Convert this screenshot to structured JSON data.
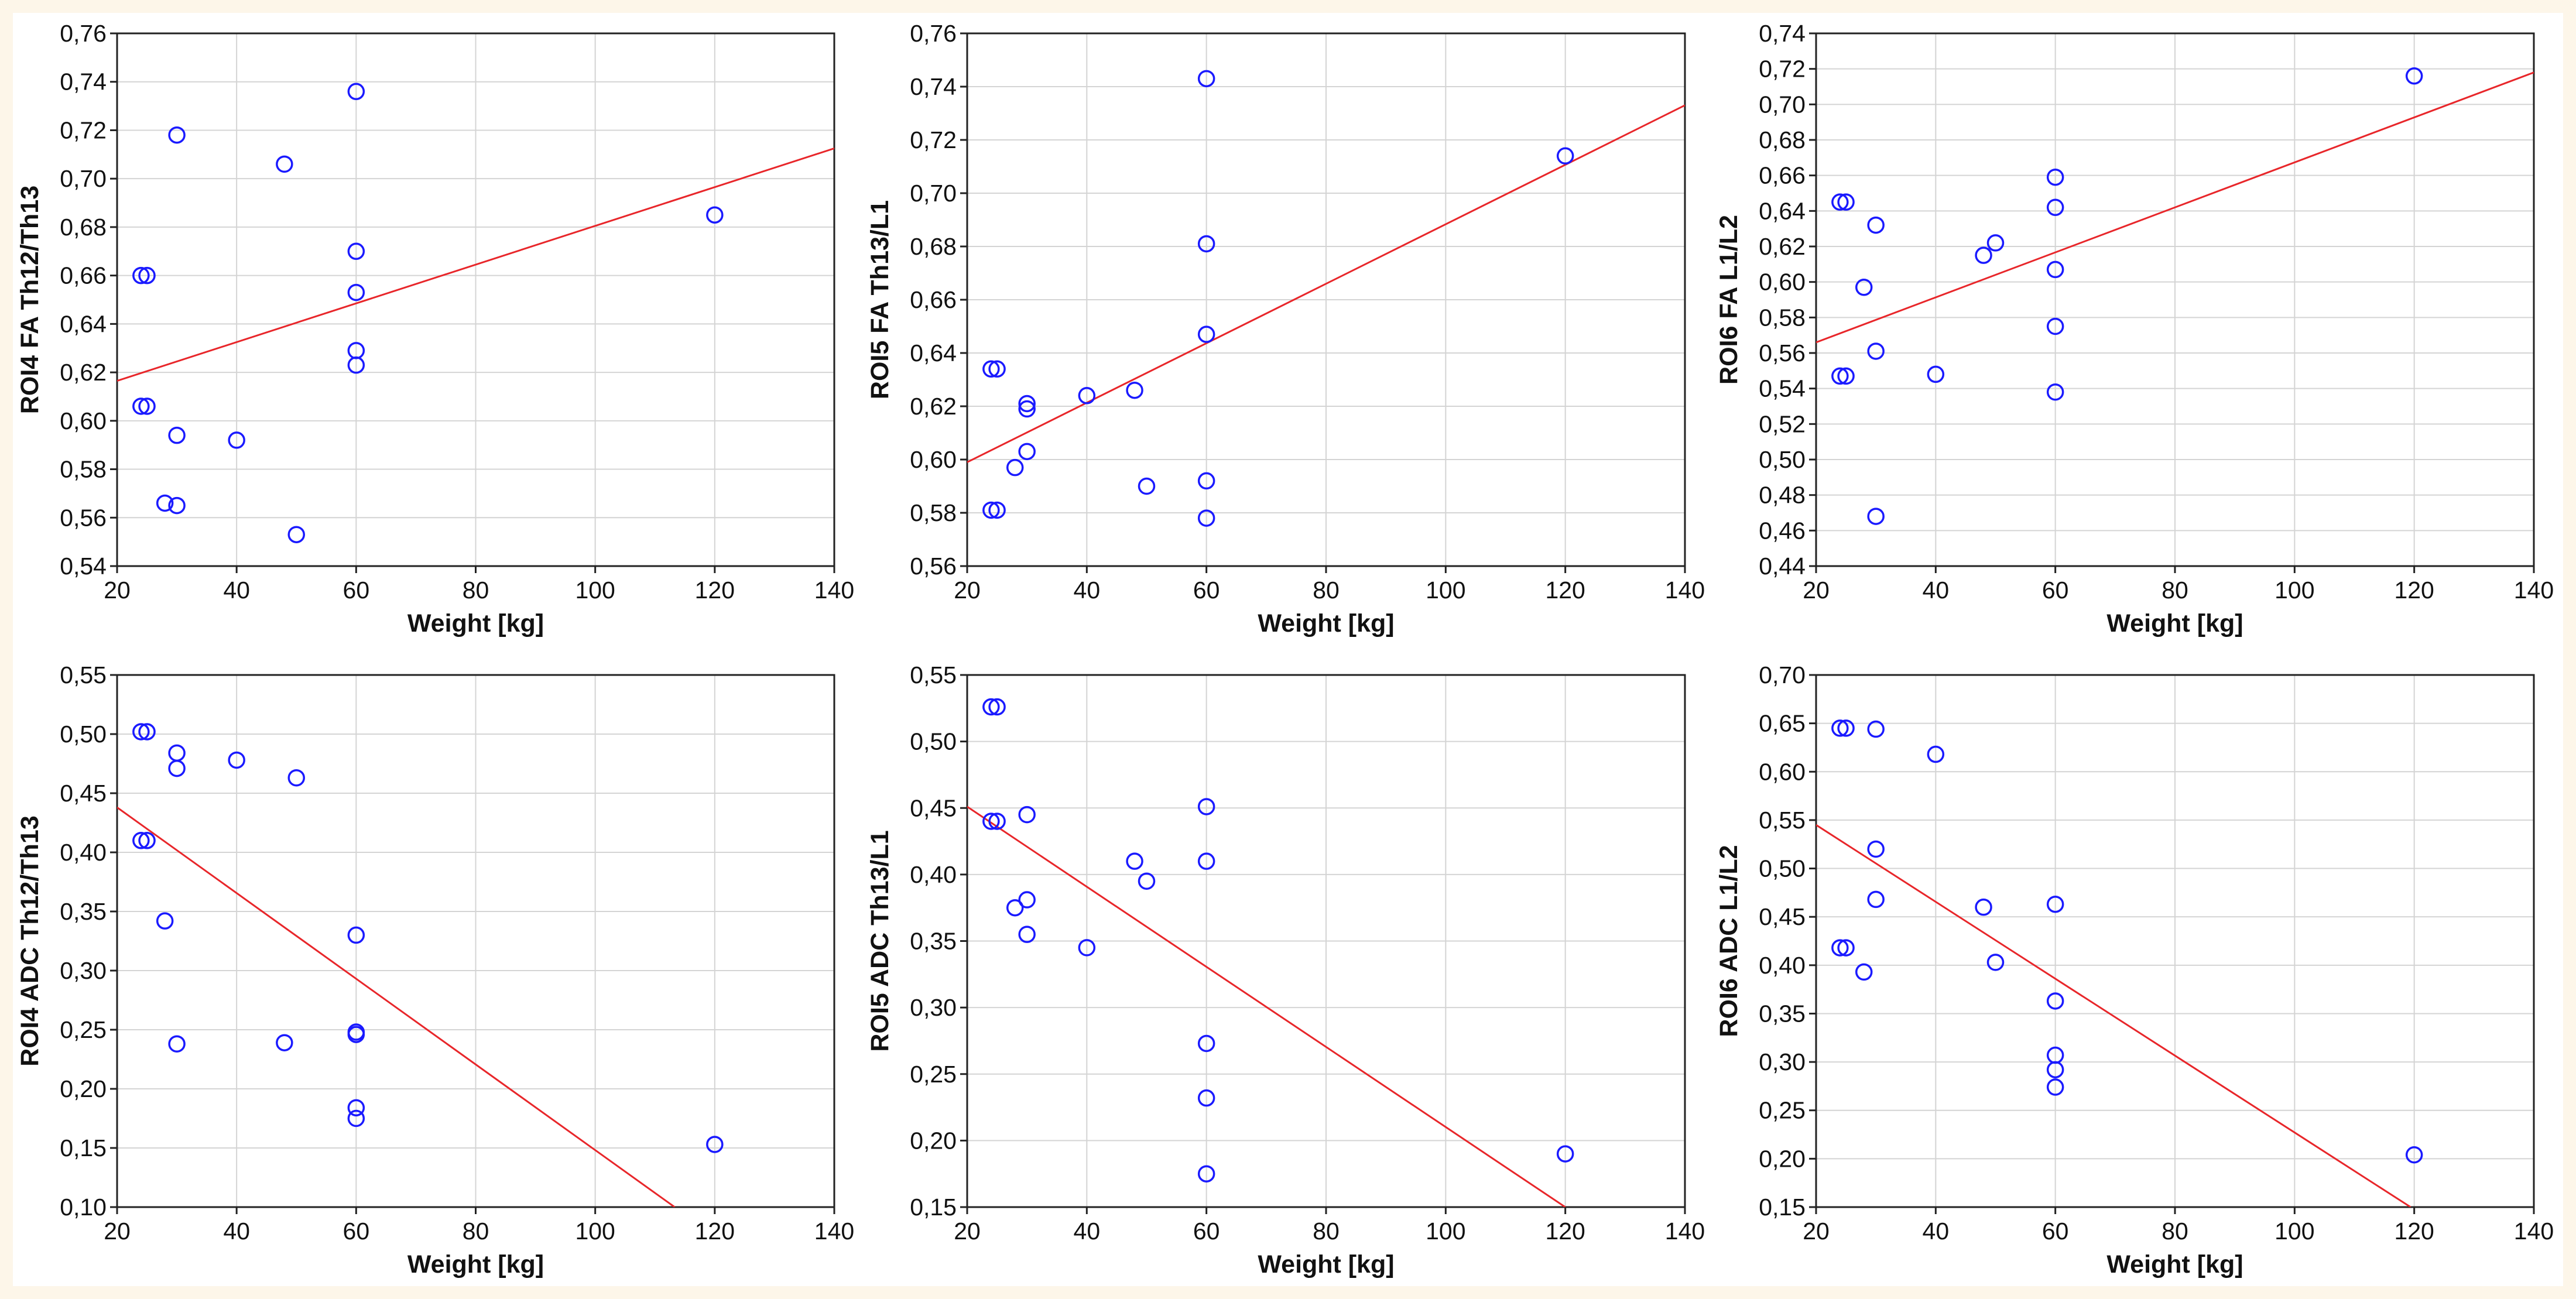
{
  "chart_data": [
    {
      "type": "scatter",
      "xlabel": "Weight [kg]",
      "ylabel": "ROI4 FA Th12/Th13",
      "xlim": [
        20,
        140
      ],
      "ylim": [
        0.54,
        0.76
      ],
      "xticks": [
        "20",
        "40",
        "60",
        "80",
        "100",
        "120",
        "140"
      ],
      "yticks": [
        "0,54",
        "0,56",
        "0,58",
        "0,60",
        "0,62",
        "0,64",
        "0,66",
        "0,68",
        "0,70",
        "0,72",
        "0,74",
        "0,76"
      ],
      "grid": true,
      "points": [
        {
          "x": 24,
          "y": 0.66
        },
        {
          "x": 25,
          "y": 0.66
        },
        {
          "x": 24,
          "y": 0.606
        },
        {
          "x": 25,
          "y": 0.606
        },
        {
          "x": 30,
          "y": 0.718
        },
        {
          "x": 30,
          "y": 0.594
        },
        {
          "x": 28,
          "y": 0.566
        },
        {
          "x": 30,
          "y": 0.565
        },
        {
          "x": 40,
          "y": 0.592
        },
        {
          "x": 48,
          "y": 0.706
        },
        {
          "x": 50,
          "y": 0.553
        },
        {
          "x": 60,
          "y": 0.736
        },
        {
          "x": 60,
          "y": 0.67
        },
        {
          "x": 60,
          "y": 0.653
        },
        {
          "x": 60,
          "y": 0.629
        },
        {
          "x": 60,
          "y": 0.623
        },
        {
          "x": 120,
          "y": 0.685
        }
      ],
      "fit": {
        "x1": 20,
        "y1": 0.6165,
        "x2": 140,
        "y2": 0.7125
      }
    },
    {
      "type": "scatter",
      "xlabel": "Weight [kg]",
      "ylabel": "ROI5 FA Th13/L1",
      "xlim": [
        20,
        140
      ],
      "ylim": [
        0.56,
        0.76
      ],
      "xticks": [
        "20",
        "40",
        "60",
        "80",
        "100",
        "120",
        "140"
      ],
      "yticks": [
        "0,56",
        "0,58",
        "0,60",
        "0,62",
        "0,64",
        "0,66",
        "0,68",
        "0,70",
        "0,72",
        "0,74",
        "0,76"
      ],
      "grid": true,
      "points": [
        {
          "x": 24,
          "y": 0.634
        },
        {
          "x": 25,
          "y": 0.634
        },
        {
          "x": 24,
          "y": 0.581
        },
        {
          "x": 25,
          "y": 0.581
        },
        {
          "x": 28,
          "y": 0.597
        },
        {
          "x": 30,
          "y": 0.621
        },
        {
          "x": 30,
          "y": 0.619
        },
        {
          "x": 30,
          "y": 0.603
        },
        {
          "x": 40,
          "y": 0.624
        },
        {
          "x": 48,
          "y": 0.626
        },
        {
          "x": 50,
          "y": 0.59
        },
        {
          "x": 60,
          "y": 0.743
        },
        {
          "x": 60,
          "y": 0.681
        },
        {
          "x": 60,
          "y": 0.647
        },
        {
          "x": 60,
          "y": 0.592
        },
        {
          "x": 60,
          "y": 0.578
        },
        {
          "x": 120,
          "y": 0.714
        }
      ],
      "fit": {
        "x1": 20,
        "y1": 0.599,
        "x2": 140,
        "y2": 0.733
      }
    },
    {
      "type": "scatter",
      "xlabel": "Weight [kg]",
      "ylabel": "ROI6 FA L1/L2",
      "xlim": [
        20,
        140
      ],
      "ylim": [
        0.44,
        0.74
      ],
      "xticks": [
        "20",
        "40",
        "60",
        "80",
        "100",
        "120",
        "140"
      ],
      "yticks": [
        "0,44",
        "0,46",
        "0,48",
        "0,50",
        "0,52",
        "0,54",
        "0,56",
        "0,58",
        "0,60",
        "0,62",
        "0,64",
        "0,66",
        "0,68",
        "0,70",
        "0,72",
        "0,74"
      ],
      "grid": true,
      "points": [
        {
          "x": 24,
          "y": 0.645
        },
        {
          "x": 25,
          "y": 0.645
        },
        {
          "x": 24,
          "y": 0.547
        },
        {
          "x": 25,
          "y": 0.547
        },
        {
          "x": 28,
          "y": 0.597
        },
        {
          "x": 30,
          "y": 0.632
        },
        {
          "x": 30,
          "y": 0.561
        },
        {
          "x": 30,
          "y": 0.468
        },
        {
          "x": 40,
          "y": 0.548
        },
        {
          "x": 48,
          "y": 0.615
        },
        {
          "x": 50,
          "y": 0.622
        },
        {
          "x": 60,
          "y": 0.659
        },
        {
          "x": 60,
          "y": 0.642
        },
        {
          "x": 60,
          "y": 0.607
        },
        {
          "x": 60,
          "y": 0.575
        },
        {
          "x": 60,
          "y": 0.538
        },
        {
          "x": 120,
          "y": 0.716
        }
      ],
      "fit": {
        "x1": 20,
        "y1": 0.566,
        "x2": 140,
        "y2": 0.718
      }
    },
    {
      "type": "scatter",
      "xlabel": "Weight [kg]",
      "ylabel": "ROI4 ADC Th12/Th13",
      "xlim": [
        20,
        140
      ],
      "ylim": [
        0.1,
        0.55
      ],
      "xticks": [
        "20",
        "40",
        "60",
        "80",
        "100",
        "120",
        "140"
      ],
      "yticks": [
        "0,10",
        "0,15",
        "0,20",
        "0,25",
        "0,30",
        "0,35",
        "0,40",
        "0,45",
        "0,50",
        "0,55"
      ],
      "grid": true,
      "points": [
        {
          "x": 24,
          "y": 0.502
        },
        {
          "x": 25,
          "y": 0.502
        },
        {
          "x": 24,
          "y": 0.41
        },
        {
          "x": 25,
          "y": 0.41
        },
        {
          "x": 28,
          "y": 0.342
        },
        {
          "x": 30,
          "y": 0.484
        },
        {
          "x": 30,
          "y": 0.471
        },
        {
          "x": 30,
          "y": 0.238
        },
        {
          "x": 40,
          "y": 0.478
        },
        {
          "x": 48,
          "y": 0.239
        },
        {
          "x": 50,
          "y": 0.463
        },
        {
          "x": 60,
          "y": 0.33
        },
        {
          "x": 60,
          "y": 0.248
        },
        {
          "x": 60,
          "y": 0.246
        },
        {
          "x": 60,
          "y": 0.184
        },
        {
          "x": 60,
          "y": 0.175
        },
        {
          "x": 120,
          "y": 0.153
        }
      ],
      "fit": {
        "x1": 20,
        "y1": 0.438,
        "x2": 113.3,
        "y2": 0.1
      }
    },
    {
      "type": "scatter",
      "xlabel": "Weight [kg]",
      "ylabel": "ROI5 ADC Th13/L1",
      "xlim": [
        20,
        140
      ],
      "ylim": [
        0.15,
        0.55
      ],
      "xticks": [
        "20",
        "40",
        "60",
        "80",
        "100",
        "120",
        "140"
      ],
      "yticks": [
        "0,15",
        "0,20",
        "0,25",
        "0,30",
        "0,35",
        "0,40",
        "0,45",
        "0,50",
        "0,55"
      ],
      "grid": true,
      "points": [
        {
          "x": 24,
          "y": 0.526
        },
        {
          "x": 25,
          "y": 0.526
        },
        {
          "x": 24,
          "y": 0.44
        },
        {
          "x": 25,
          "y": 0.44
        },
        {
          "x": 28,
          "y": 0.375
        },
        {
          "x": 30,
          "y": 0.445
        },
        {
          "x": 30,
          "y": 0.381
        },
        {
          "x": 30,
          "y": 0.355
        },
        {
          "x": 40,
          "y": 0.345
        },
        {
          "x": 48,
          "y": 0.41
        },
        {
          "x": 50,
          "y": 0.395
        },
        {
          "x": 60,
          "y": 0.451
        },
        {
          "x": 60,
          "y": 0.41
        },
        {
          "x": 60,
          "y": 0.273
        },
        {
          "x": 60,
          "y": 0.232
        },
        {
          "x": 60,
          "y": 0.175
        },
        {
          "x": 120,
          "y": 0.19
        }
      ],
      "fit": {
        "x1": 20,
        "y1": 0.451,
        "x2": 120,
        "y2": 0.15
      }
    },
    {
      "type": "scatter",
      "xlabel": "Weight [kg]",
      "ylabel": "ROI6 ADC L1/L2",
      "xlim": [
        20,
        140
      ],
      "ylim": [
        0.15,
        0.7
      ],
      "xticks": [
        "20",
        "40",
        "60",
        "80",
        "100",
        "120",
        "140"
      ],
      "yticks": [
        "0,15",
        "0,20",
        "0,25",
        "0,30",
        "0,35",
        "0,40",
        "0,45",
        "0,50",
        "0,55",
        "0,60",
        "0,65",
        "0,70"
      ],
      "grid": true,
      "points": [
        {
          "x": 24,
          "y": 0.645
        },
        {
          "x": 25,
          "y": 0.645
        },
        {
          "x": 24,
          "y": 0.418
        },
        {
          "x": 25,
          "y": 0.418
        },
        {
          "x": 28,
          "y": 0.393
        },
        {
          "x": 30,
          "y": 0.644
        },
        {
          "x": 30,
          "y": 0.52
        },
        {
          "x": 30,
          "y": 0.468
        },
        {
          "x": 40,
          "y": 0.618
        },
        {
          "x": 48,
          "y": 0.46
        },
        {
          "x": 50,
          "y": 0.403
        },
        {
          "x": 60,
          "y": 0.463
        },
        {
          "x": 60,
          "y": 0.363
        },
        {
          "x": 60,
          "y": 0.307
        },
        {
          "x": 60,
          "y": 0.292
        },
        {
          "x": 60,
          "y": 0.274
        },
        {
          "x": 120,
          "y": 0.204
        }
      ],
      "fit": {
        "x1": 20,
        "y1": 0.545,
        "x2": 119.4,
        "y2": 0.15
      }
    }
  ]
}
